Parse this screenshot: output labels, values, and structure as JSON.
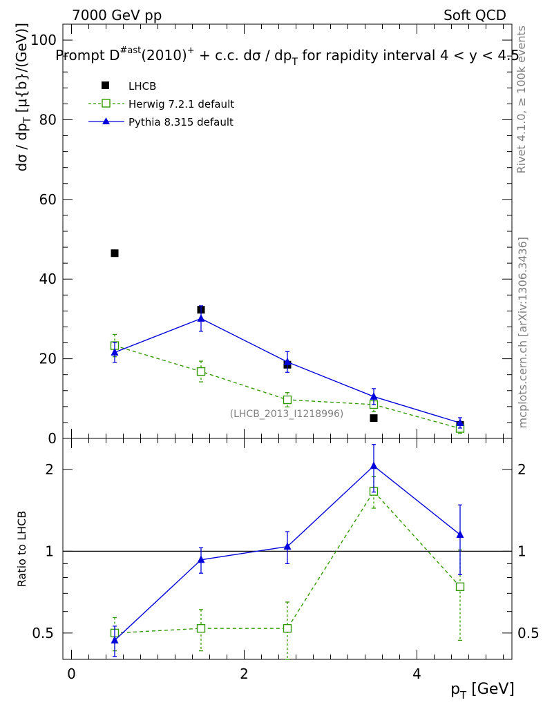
{
  "header": {
    "left": "7000 GeV pp",
    "right": "Soft QCD"
  },
  "title": {
    "prefix": "Prompt D",
    "sup1": "#ast",
    "mid": "(2010)",
    "sup2": "+",
    "suffix": " + c.c.  dσ / dp",
    "sub": "T",
    "tail": " for rapidity interval 4 < y < 4.5"
  },
  "side_labels": {
    "rivet": "Rivet 4.1.0, ≥ 100k events",
    "mcplots": "mcplots.cern.ch [arXiv:1306.3436]"
  },
  "watermark": "(LHCB_2013_I1218996)",
  "legend": {
    "data": "LHCB",
    "herwig": "Herwig 7.2.1 default",
    "pythia": "Pythia 8.315 default"
  },
  "colors": {
    "data": "#000000",
    "herwig": "#339900",
    "pythia": "#0000dd",
    "grey": "#808080"
  },
  "chart_data": {
    "type": "line",
    "x": [
      0.5,
      1.5,
      2.5,
      3.5,
      4.5
    ],
    "xlim": [
      -0.1,
      5.1
    ],
    "main": {
      "ylabel_parts": [
        "dσ / dp",
        "T",
        " [μ{b}/(GeV)]"
      ],
      "ylim": [
        0,
        104
      ],
      "yticks": [
        0,
        20,
        40,
        60,
        80,
        100
      ],
      "ytick_labels": [
        "0",
        "20",
        "40",
        "60",
        "80",
        "100"
      ],
      "series": [
        {
          "name": "LHCB",
          "key": "data",
          "values": [
            46.5,
            32.3,
            18.5,
            5.1,
            3.4
          ]
        },
        {
          "name": "Herwig 7.2.1 default",
          "key": "herwig",
          "values": [
            23.3,
            16.8,
            9.7,
            8.5,
            2.5
          ],
          "err": [
            2.8,
            2.6,
            1.8,
            1.8,
            1.2
          ]
        },
        {
          "name": "Pythia 8.315 default",
          "key": "pythia",
          "values": [
            21.6,
            30.1,
            19.2,
            10.5,
            3.9
          ],
          "err": [
            2.5,
            3.2,
            2.6,
            2.0,
            1.3
          ]
        }
      ]
    },
    "ratio": {
      "ylabel": "Ratio to LHCB",
      "ylim": [
        0.4,
        2.6
      ],
      "yticks": [
        0.5,
        1,
        2
      ],
      "ytick_labels": [
        "0.5",
        "1",
        "2"
      ],
      "reference": 1,
      "series": [
        {
          "name": "Herwig 7.2.1 default",
          "key": "herwig",
          "values": [
            0.5,
            0.52,
            0.52,
            1.66,
            0.74
          ],
          "err_lo": [
            0.07,
            0.09,
            0.13,
            0.22,
            0.27
          ],
          "err_hi": [
            0.07,
            0.09,
            0.13,
            0.22,
            0.27
          ]
        },
        {
          "name": "Pythia 8.315 default",
          "key": "pythia",
          "values": [
            0.47,
            0.93,
            1.04,
            2.06,
            1.15
          ],
          "err_lo": [
            0.06,
            0.1,
            0.14,
            0.41,
            0.33
          ],
          "err_hi": [
            0.06,
            0.1,
            0.14,
            0.41,
            0.33
          ]
        }
      ]
    },
    "xlabel_parts": [
      "p",
      "T",
      " [GeV]"
    ],
    "xticks": [
      0,
      2,
      4
    ],
    "xtick_labels": [
      "0",
      "2",
      "4"
    ]
  }
}
